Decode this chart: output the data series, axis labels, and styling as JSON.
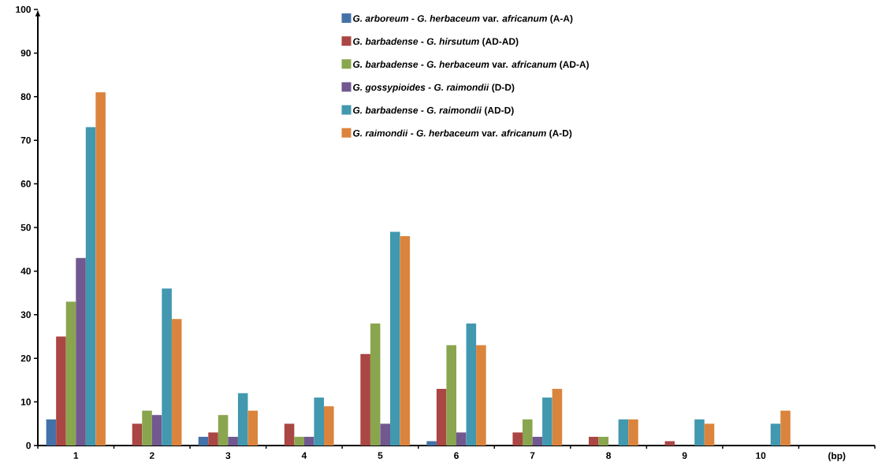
{
  "chart_data": {
    "type": "bar",
    "xlabel": "(bp)",
    "categories": [
      "1",
      "2",
      "3",
      "4",
      "5",
      "6",
      "7",
      "8",
      "9",
      "10"
    ],
    "series": [
      {
        "name": "*G. arboreum* - *G. herbaceum* var. *africanum* (A-A)",
        "color": "#4472a8",
        "values": [
          6,
          0,
          2,
          0,
          0,
          1,
          0,
          0,
          0,
          0
        ]
      },
      {
        "name": "*G. barbadense* - *G. hirsutum* (AD-AD)",
        "color": "#aa4643",
        "values": [
          25,
          5,
          3,
          5,
          21,
          13,
          3,
          2,
          1,
          0
        ]
      },
      {
        "name": "*G. barbadense* - *G. herbaceum* var. *africanum* (AD-A)",
        "color": "#89a54e",
        "values": [
          33,
          8,
          7,
          2,
          28,
          23,
          6,
          2,
          0,
          0
        ]
      },
      {
        "name": "*G. gossypioides* - *G. raimondii* (D-D)",
        "color": "#71588f",
        "values": [
          43,
          7,
          2,
          2,
          5,
          3,
          2,
          0,
          0,
          0
        ]
      },
      {
        "name": "*G. barbadense* - *G. raimondii* (AD-D)",
        "color": "#4198af",
        "values": [
          73,
          36,
          12,
          11,
          49,
          28,
          11,
          6,
          6,
          5
        ]
      },
      {
        "name": "*G. raimondii* - *G. herbaceum* var. *africanum* (A-D)",
        "color": "#db843d",
        "values": [
          81,
          29,
          8,
          9,
          48,
          23,
          13,
          6,
          5,
          8
        ]
      }
    ],
    "ylim": [
      0,
      100
    ],
    "yticks": [
      0,
      10,
      20,
      30,
      40,
      50,
      60,
      70,
      80,
      90,
      100
    ],
    "legend": "top right"
  }
}
